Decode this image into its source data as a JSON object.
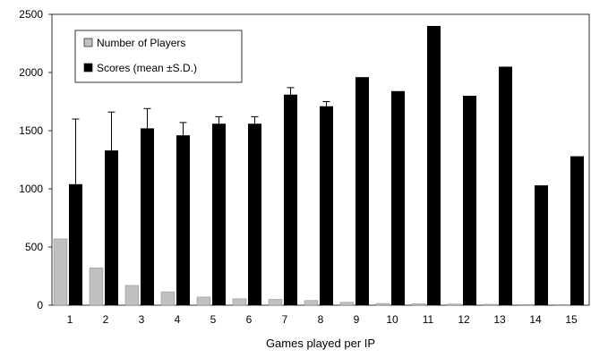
{
  "chart_data": {
    "type": "bar",
    "xlabel": "Games played per IP",
    "ylabel": "",
    "ylim": [
      0,
      2500
    ],
    "yticks": [
      "0",
      "500",
      "1000",
      "1500",
      "2000",
      "2500"
    ],
    "categories": [
      "1",
      "2",
      "3",
      "4",
      "5",
      "6",
      "7",
      "8",
      "9",
      "10",
      "11",
      "12",
      "13",
      "14",
      "15"
    ],
    "grid": false,
    "legend": "top-left",
    "series": [
      {
        "name": "Number of Players",
        "color": "#c0c0c0",
        "values": [
          570,
          320,
          170,
          115,
          70,
          55,
          50,
          40,
          25,
          15,
          12,
          10,
          8,
          6,
          5
        ]
      },
      {
        "name": "Scores (mean ±S.D.)",
        "color": "#000000",
        "values": [
          1040,
          1330,
          1520,
          1460,
          1560,
          1560,
          1810,
          1710,
          1960,
          1840,
          2400,
          1800,
          2050,
          1030,
          1280
        ],
        "error": [
          560,
          330,
          170,
          110,
          60,
          60,
          60,
          40,
          0,
          0,
          0,
          0,
          0,
          0,
          0
        ]
      }
    ]
  }
}
